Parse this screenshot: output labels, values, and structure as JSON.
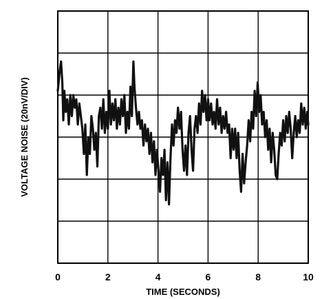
{
  "chart_data": {
    "type": "line",
    "xlabel": "TIME (SECONDS)",
    "ylabel": "VOLTAGE NOISE (20nV/DIV)",
    "xlim": [
      0,
      10
    ],
    "xticks": [
      "0",
      "2",
      "4",
      "6",
      "8",
      "10"
    ],
    "ylim": [
      -3,
      3
    ],
    "grid": true,
    "series": [
      {
        "values": [
          [
            0.0,
            1.1
          ],
          [
            0.08,
            1.6
          ],
          [
            0.13,
            1.8
          ],
          [
            0.18,
            1.3
          ],
          [
            0.22,
            0.4
          ],
          [
            0.26,
            1.1
          ],
          [
            0.32,
            0.6
          ],
          [
            0.38,
            0.9
          ],
          [
            0.44,
            0.3
          ],
          [
            0.5,
            1.0
          ],
          [
            0.56,
            0.5
          ],
          [
            0.62,
            1.0
          ],
          [
            0.68,
            0.7
          ],
          [
            0.74,
            0.9
          ],
          [
            0.8,
            0.3
          ],
          [
            0.86,
            0.8
          ],
          [
            0.92,
            0.5
          ],
          [
            0.98,
            0.2
          ],
          [
            1.04,
            -0.4
          ],
          [
            1.1,
            0.3
          ],
          [
            1.16,
            -0.9
          ],
          [
            1.22,
            0.0
          ],
          [
            1.28,
            -0.4
          ],
          [
            1.34,
            0.5
          ],
          [
            1.4,
            0.2
          ],
          [
            1.46,
            -0.3
          ],
          [
            1.52,
            0.1
          ],
          [
            1.58,
            -0.7
          ],
          [
            1.64,
            0.5
          ],
          [
            1.7,
            0.7
          ],
          [
            1.76,
            0.2
          ],
          [
            1.82,
            0.9
          ],
          [
            1.88,
            0.1
          ],
          [
            1.94,
            0.6
          ],
          [
            2.0,
            0.2
          ],
          [
            2.06,
            1.1
          ],
          [
            2.12,
            0.3
          ],
          [
            2.18,
            0.8
          ],
          [
            2.24,
            0.4
          ],
          [
            2.3,
            0.9
          ],
          [
            2.36,
            0.2
          ],
          [
            2.42,
            0.7
          ],
          [
            2.48,
            0.3
          ],
          [
            2.54,
            0.9
          ],
          [
            2.6,
            0.5
          ],
          [
            2.66,
            1.0
          ],
          [
            2.72,
            0.1
          ],
          [
            2.78,
            0.6
          ],
          [
            2.84,
            0.2
          ],
          [
            2.9,
            1.2
          ],
          [
            2.96,
            0.5
          ],
          [
            3.02,
            1.8
          ],
          [
            3.06,
            1.2
          ],
          [
            3.12,
            0.7
          ],
          [
            3.18,
            0.3
          ],
          [
            3.24,
            0.6
          ],
          [
            3.3,
            0.2
          ],
          [
            3.36,
            0.4
          ],
          [
            3.42,
            -0.2
          ],
          [
            3.48,
            0.3
          ],
          [
            3.54,
            -0.1
          ],
          [
            3.6,
            0.2
          ],
          [
            3.66,
            -0.4
          ],
          [
            3.72,
            0.1
          ],
          [
            3.78,
            -0.6
          ],
          [
            3.84,
            -0.1
          ],
          [
            3.9,
            -0.9
          ],
          [
            3.96,
            -0.3
          ],
          [
            4.02,
            -0.8
          ],
          [
            4.08,
            -1.3
          ],
          [
            4.14,
            -0.5
          ],
          [
            4.2,
            -0.9
          ],
          [
            4.26,
            -0.3
          ],
          [
            4.32,
            -1.5
          ],
          [
            4.38,
            -0.6
          ],
          [
            4.44,
            -1.6
          ],
          [
            4.5,
            -0.5
          ],
          [
            4.56,
            0.3
          ],
          [
            4.62,
            -0.2
          ],
          [
            4.68,
            0.4
          ],
          [
            4.74,
            0.1
          ],
          [
            4.8,
            0.7
          ],
          [
            4.86,
            0.2
          ],
          [
            4.92,
            0.6
          ],
          [
            4.98,
            -0.3
          ],
          [
            5.04,
            -0.8
          ],
          [
            5.1,
            -0.2
          ],
          [
            5.16,
            -0.9
          ],
          [
            5.22,
            0.1
          ],
          [
            5.28,
            0.5
          ],
          [
            5.34,
            -0.3
          ],
          [
            5.4,
            -0.8
          ],
          [
            5.46,
            0.2
          ],
          [
            5.52,
            0.5
          ],
          [
            5.58,
            0.1
          ],
          [
            5.64,
            0.8
          ],
          [
            5.7,
            0.3
          ],
          [
            5.76,
            1.1
          ],
          [
            5.82,
            0.6
          ],
          [
            5.88,
            1.0
          ],
          [
            5.94,
            0.4
          ],
          [
            6.0,
            0.9
          ],
          [
            6.06,
            0.4
          ],
          [
            6.12,
            0.8
          ],
          [
            6.18,
            0.3
          ],
          [
            6.24,
            0.6
          ],
          [
            6.3,
            0.2
          ],
          [
            6.36,
            0.9
          ],
          [
            6.42,
            0.3
          ],
          [
            6.48,
            0.7
          ],
          [
            6.54,
            0.1
          ],
          [
            6.6,
            0.5
          ],
          [
            6.66,
            0.2
          ],
          [
            6.72,
            0.6
          ],
          [
            6.78,
            0.1
          ],
          [
            6.84,
            0.3
          ],
          [
            6.9,
            -0.5
          ],
          [
            6.96,
            0.2
          ],
          [
            7.02,
            -0.3
          ],
          [
            7.08,
            0.2
          ],
          [
            7.14,
            -0.5
          ],
          [
            7.2,
            0.1
          ],
          [
            7.26,
            -0.8
          ],
          [
            7.32,
            -1.3
          ],
          [
            7.38,
            -0.4
          ],
          [
            7.44,
            -1.1
          ],
          [
            7.5,
            -0.6
          ],
          [
            7.56,
            -0.2
          ],
          [
            7.62,
            0.4
          ],
          [
            7.68,
            -0.1
          ],
          [
            7.74,
            0.6
          ],
          [
            7.8,
            0.2
          ],
          [
            7.86,
            1.1
          ],
          [
            7.92,
            0.5
          ],
          [
            7.98,
            1.3
          ],
          [
            8.04,
            0.6
          ],
          [
            8.1,
            1.0
          ],
          [
            8.16,
            0.3
          ],
          [
            8.22,
            0.6
          ],
          [
            8.28,
            0.0
          ],
          [
            8.34,
            0.4
          ],
          [
            8.4,
            -0.3
          ],
          [
            8.46,
            0.2
          ],
          [
            8.52,
            -0.6
          ],
          [
            8.58,
            0.1
          ],
          [
            8.64,
            -0.3
          ],
          [
            8.7,
            -0.9
          ],
          [
            8.76,
            -1.0
          ],
          [
            8.82,
            -0.4
          ],
          [
            8.88,
            0.1
          ],
          [
            8.94,
            -0.2
          ],
          [
            9.0,
            0.4
          ],
          [
            9.06,
            -0.1
          ],
          [
            9.12,
            0.5
          ],
          [
            9.18,
            0.1
          ],
          [
            9.24,
            0.6
          ],
          [
            9.3,
            0.2
          ],
          [
            9.36,
            -0.5
          ],
          [
            9.42,
            0.1
          ],
          [
            9.48,
            0.5
          ],
          [
            9.54,
            0.0
          ],
          [
            9.6,
            0.4
          ],
          [
            9.66,
            0.1
          ],
          [
            9.72,
            0.8
          ],
          [
            9.78,
            0.3
          ],
          [
            9.84,
            0.7
          ],
          [
            9.9,
            0.2
          ],
          [
            9.96,
            0.6
          ],
          [
            10.0,
            0.3
          ]
        ]
      }
    ]
  }
}
